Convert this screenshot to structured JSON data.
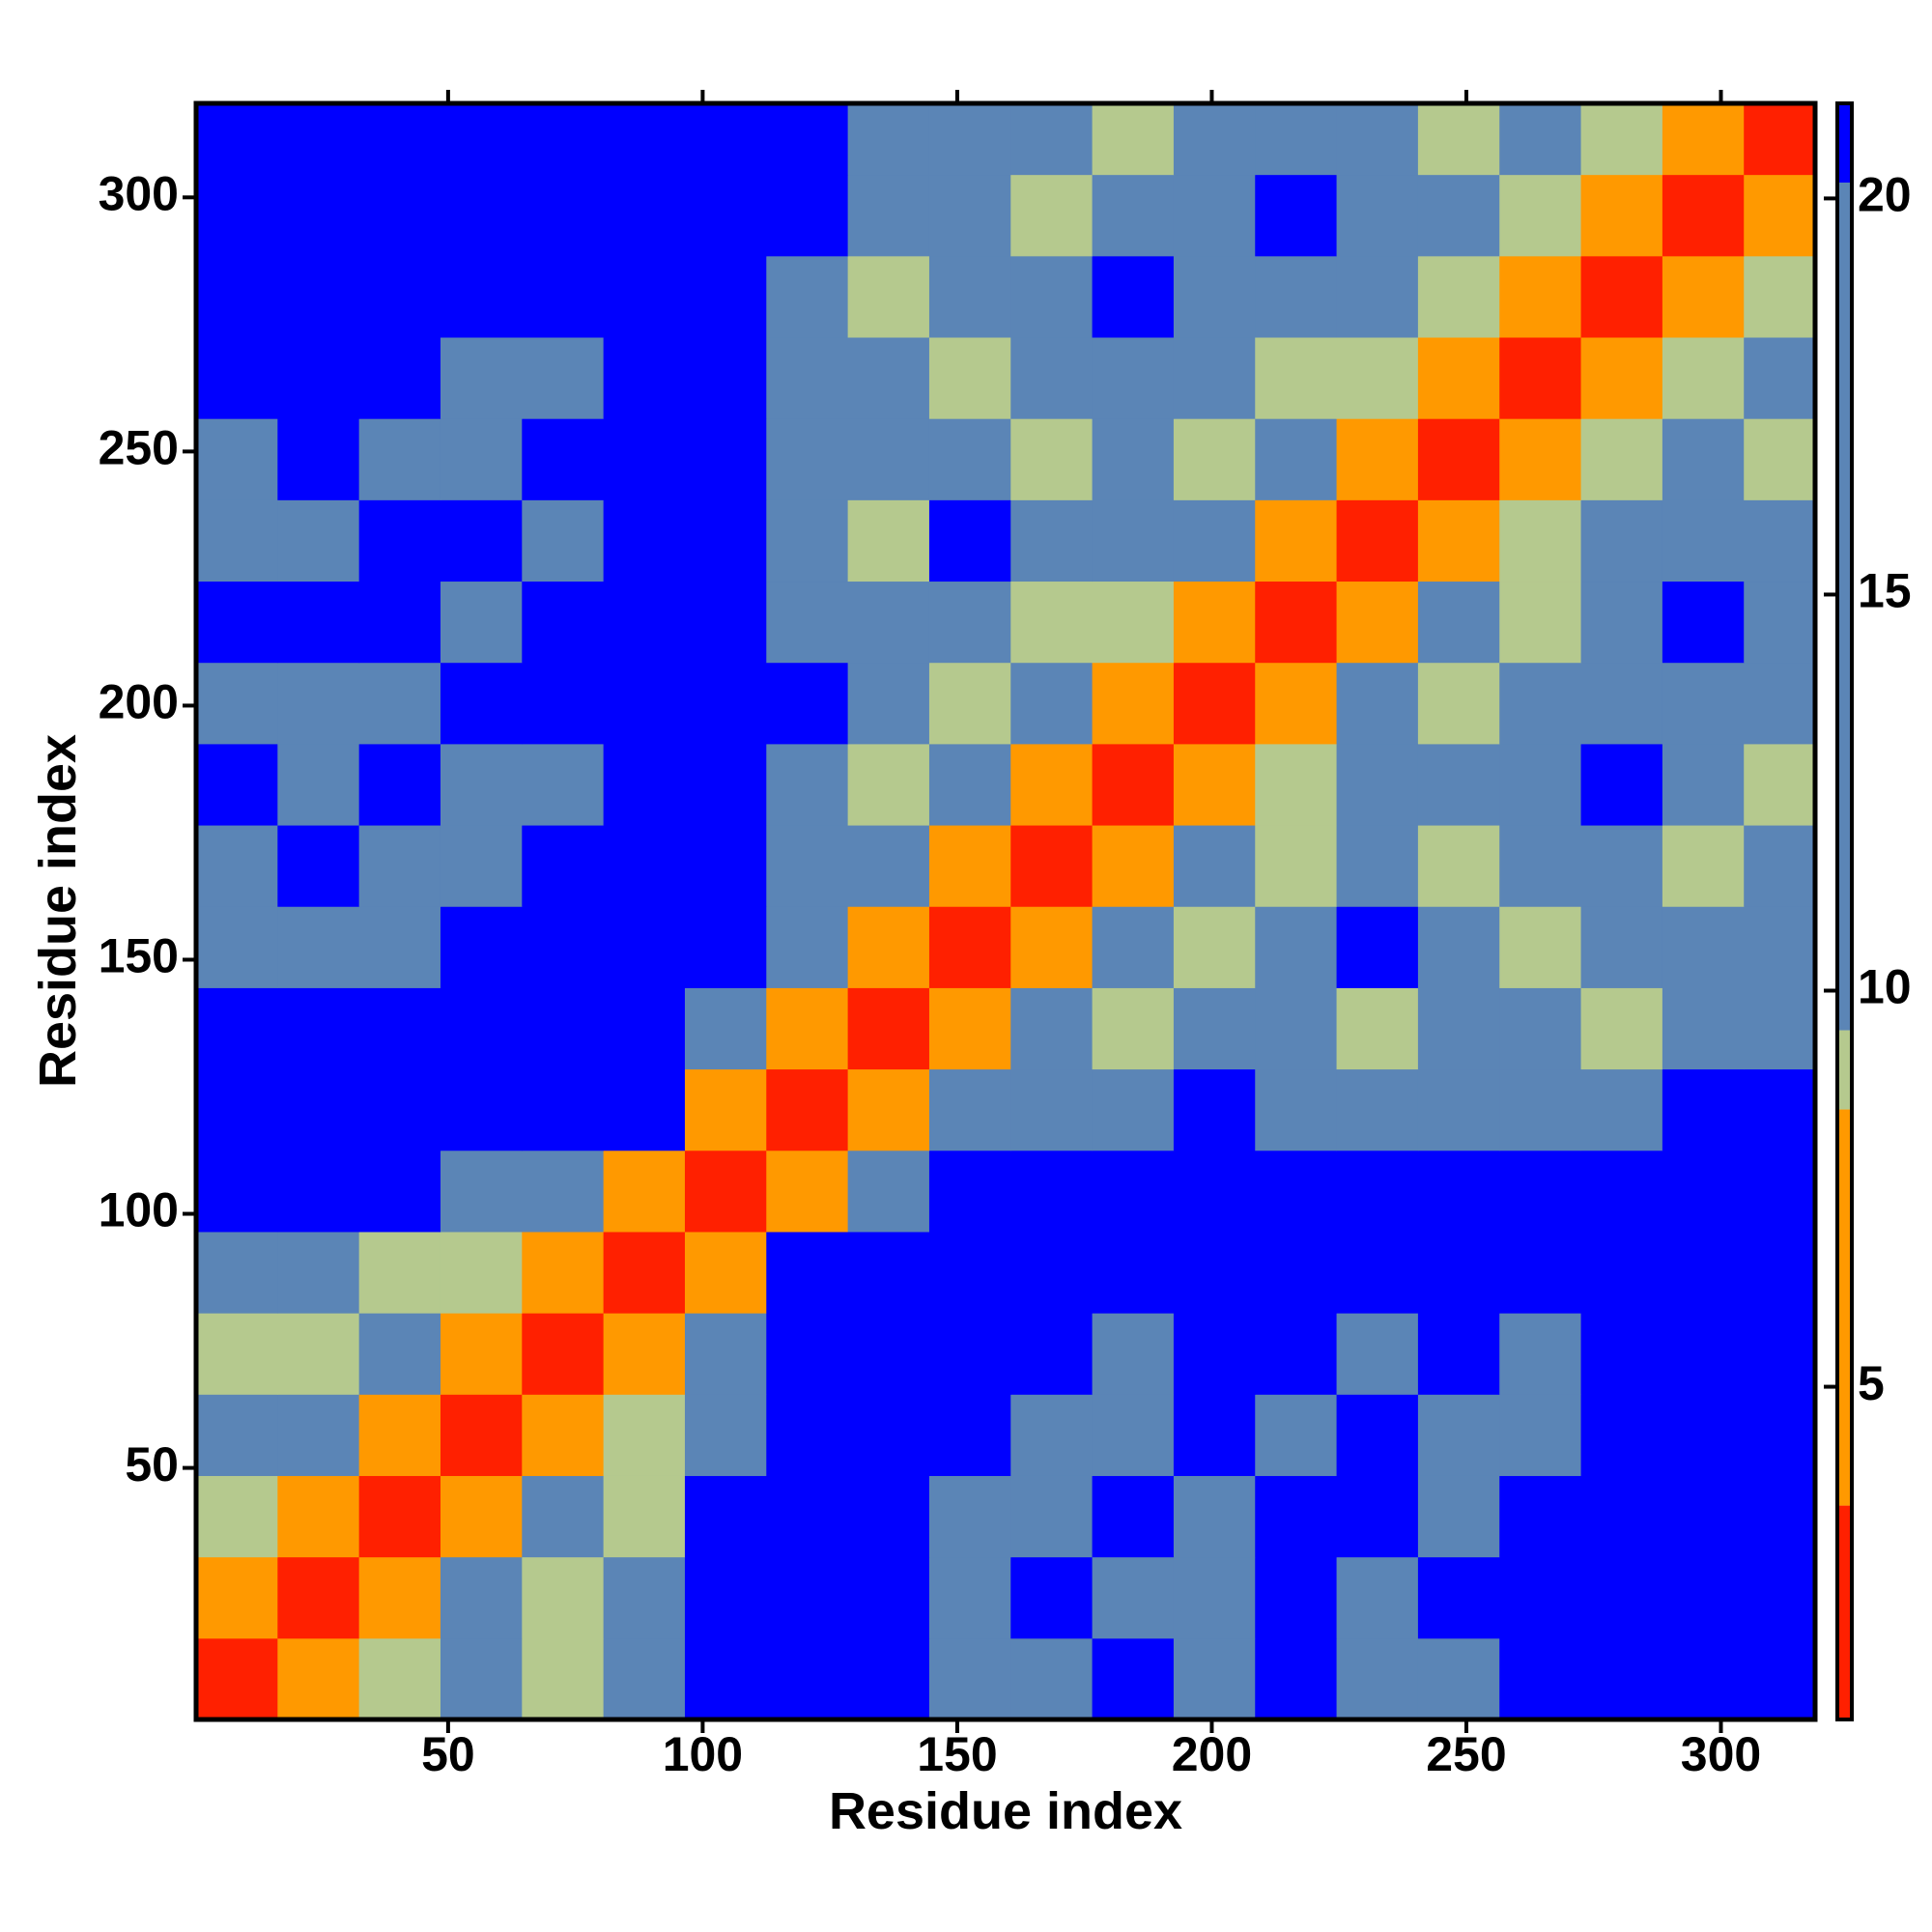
{
  "chart_data": {
    "type": "heatmap",
    "x_label": "Residue index",
    "y_label": "Residue index",
    "xlim": [
      0.5,
      318.5
    ],
    "ylim": [
      0.5,
      318.5
    ],
    "xticks": [
      50,
      100,
      150,
      200,
      250,
      300
    ],
    "yticks": [
      50,
      100,
      150,
      200,
      250,
      300
    ],
    "bins": [
      0.5,
      16.5,
      32.5,
      48.5,
      64.5,
      80.5,
      96.5,
      112.5,
      128.5,
      144.5,
      160.5,
      176.5,
      192.5,
      208.5,
      224.5,
      240.5,
      256.5,
      272.5,
      288.5,
      304.5,
      318.5
    ],
    "levels": [
      0.8,
      3.5,
      8.5,
      9.5,
      20.2,
      21.2
    ],
    "level_colors": [
      "#ff2000",
      "#ff9900",
      "#b5c98e",
      "#5b85b6",
      "#0000ff"
    ],
    "colorbar_ticks": [
      5,
      10,
      15,
      20
    ],
    "z": [
      [
        3,
        7,
        9,
        14,
        9,
        14,
        21,
        21,
        21,
        19,
        19,
        21,
        19,
        21,
        19,
        19,
        21,
        21,
        21,
        21
      ],
      [
        7,
        3,
        7,
        14,
        9,
        14,
        21,
        21,
        21,
        19,
        21,
        19,
        19,
        21,
        19,
        21,
        21,
        21,
        21,
        21
      ],
      [
        9,
        7,
        3,
        7,
        14,
        9,
        21,
        21,
        21,
        19,
        19,
        21,
        19,
        21,
        21,
        19,
        21,
        21,
        21,
        21
      ],
      [
        14,
        14,
        7,
        3,
        7,
        9,
        14,
        21,
        21,
        21,
        19,
        19,
        21,
        19,
        21,
        19,
        19,
        21,
        21,
        21
      ],
      [
        9,
        9,
        14,
        7,
        3,
        7,
        14,
        21,
        21,
        21,
        21,
        19,
        21,
        21,
        19,
        21,
        19,
        21,
        21,
        21
      ],
      [
        14,
        14,
        9,
        9,
        7,
        3,
        7,
        21,
        21,
        21,
        21,
        21,
        21,
        21,
        21,
        21,
        21,
        21,
        21,
        21
      ],
      [
        21,
        21,
        21,
        14,
        14,
        7,
        3,
        7,
        14,
        21,
        21,
        21,
        21,
        21,
        21,
        21,
        21,
        21,
        21,
        21
      ],
      [
        21,
        21,
        21,
        21,
        21,
        21,
        7,
        3,
        7,
        14,
        14,
        14,
        21,
        14,
        14,
        14,
        14,
        14,
        21,
        21
      ],
      [
        21,
        21,
        21,
        21,
        21,
        21,
        14,
        7,
        3,
        7,
        14,
        9,
        14,
        14,
        9,
        14,
        14,
        9,
        14,
        14
      ],
      [
        19,
        19,
        19,
        21,
        21,
        21,
        21,
        14,
        7,
        3,
        7,
        14,
        9,
        14,
        21,
        14,
        9,
        14,
        14,
        14
      ],
      [
        19,
        21,
        19,
        19,
        21,
        21,
        21,
        14,
        14,
        7,
        3,
        7,
        14,
        9,
        14,
        9,
        14,
        14,
        9,
        14
      ],
      [
        21,
        19,
        21,
        19,
        19,
        21,
        21,
        14,
        9,
        14,
        7,
        3,
        7,
        9,
        14,
        14,
        14,
        21,
        14,
        9
      ],
      [
        19,
        19,
        19,
        21,
        21,
        21,
        21,
        21,
        14,
        9,
        14,
        7,
        3,
        7,
        14,
        9,
        14,
        14,
        14,
        14
      ],
      [
        21,
        21,
        21,
        19,
        21,
        21,
        21,
        14,
        14,
        14,
        9,
        9,
        7,
        3,
        7,
        14,
        9,
        14,
        21,
        14
      ],
      [
        19,
        19,
        21,
        21,
        19,
        21,
        21,
        14,
        9,
        21,
        14,
        14,
        14,
        7,
        3,
        7,
        9,
        14,
        14,
        14
      ],
      [
        19,
        21,
        19,
        19,
        21,
        21,
        21,
        14,
        14,
        14,
        9,
        14,
        9,
        14,
        7,
        3,
        7,
        9,
        14,
        9
      ],
      [
        21,
        21,
        21,
        19,
        19,
        21,
        21,
        14,
        14,
        9,
        14,
        14,
        14,
        9,
        9,
        7,
        3,
        7,
        9,
        14
      ],
      [
        21,
        21,
        21,
        21,
        21,
        21,
        21,
        14,
        9,
        14,
        14,
        21,
        14,
        14,
        14,
        9,
        7,
        3,
        7,
        9
      ],
      [
        21,
        21,
        21,
        21,
        21,
        21,
        21,
        21,
        14,
        14,
        9,
        14,
        14,
        21,
        14,
        14,
        9,
        7,
        3,
        7
      ],
      [
        21,
        21,
        21,
        21,
        21,
        21,
        21,
        21,
        14,
        14,
        14,
        9,
        14,
        14,
        14,
        9,
        14,
        9,
        7,
        3
      ]
    ]
  }
}
